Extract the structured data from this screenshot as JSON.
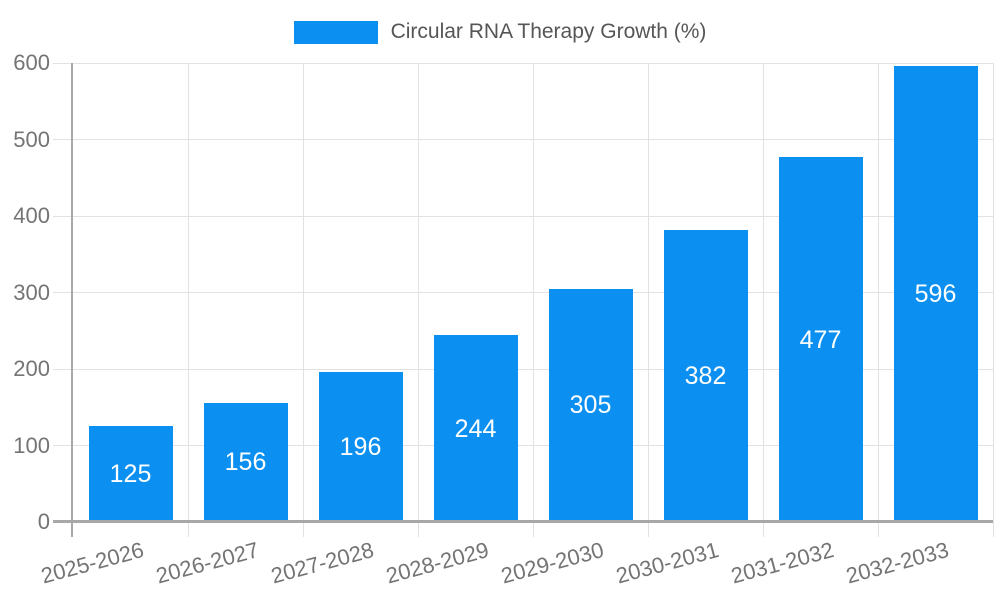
{
  "chart_data": {
    "type": "bar",
    "title": "Circular RNA Therapy Growth (%)",
    "legend_entries": [
      "Circular RNA Therapy Growth (%)"
    ],
    "legend_position": "top-center",
    "categories": [
      "2025-2026",
      "2026-2027",
      "2027-2028",
      "2028-2029",
      "2029-2030",
      "2030-2031",
      "2031-2032",
      "2032-2033"
    ],
    "values": [
      125,
      156,
      196,
      244,
      305,
      382,
      477,
      596
    ],
    "xlabel": "",
    "ylabel": "",
    "ylim": [
      0,
      600
    ],
    "yticks": [
      0,
      100,
      200,
      300,
      400,
      500,
      600
    ],
    "grid": true,
    "value_labels": "inside-middle",
    "x_tick_label_rotation_deg": -15
  },
  "colors": {
    "bar": "#0b90f1",
    "grid": "#e2e2e2",
    "axis": "#a8a8a8",
    "tick_label": "#747474",
    "legend_text": "#565656",
    "value_label": "#ffffff",
    "background": "#ffffff"
  }
}
